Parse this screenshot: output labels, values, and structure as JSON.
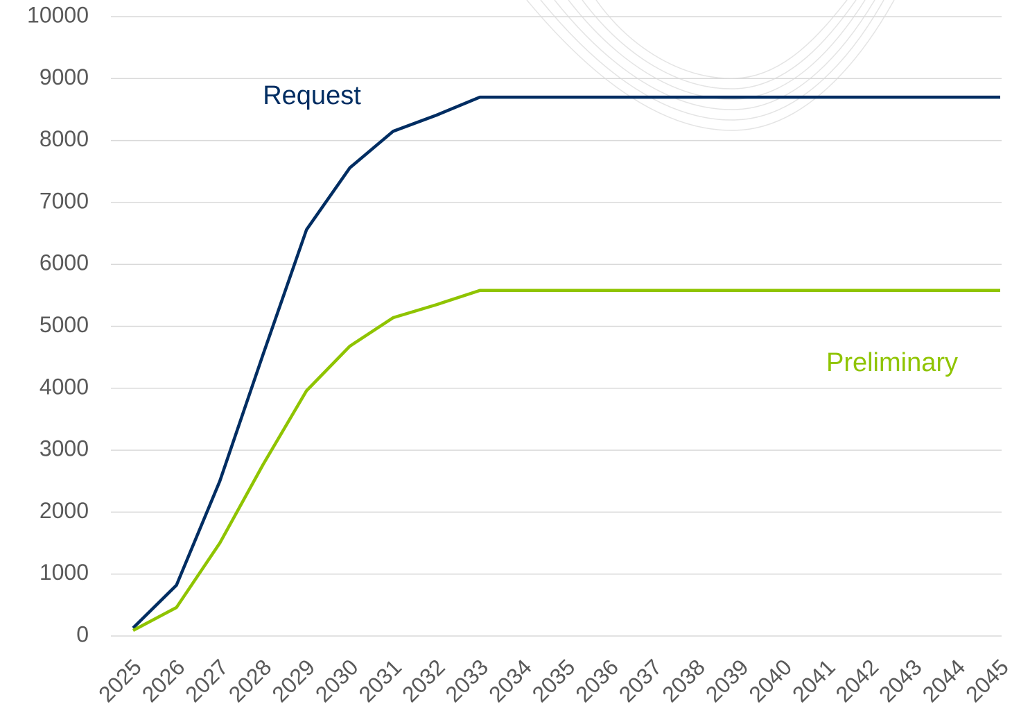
{
  "chart_data": {
    "type": "line",
    "categories": [
      "2025",
      "2026",
      "2027",
      "2028",
      "2029",
      "2030",
      "2031",
      "2032",
      "2033",
      "2034",
      "2035",
      "2036",
      "2037",
      "2038",
      "2039",
      "2040",
      "2041",
      "2042",
      "2043",
      "2044",
      "2045"
    ],
    "series": [
      {
        "name": "Request",
        "color": "#002d62",
        "values": [
          130,
          820,
          2500,
          4550,
          6560,
          7560,
          8150,
          8410,
          8700,
          8700,
          8700,
          8700,
          8700,
          8700,
          8700,
          8700,
          8700,
          8700,
          8700,
          8700,
          8700
        ]
      },
      {
        "name": "Preliminary",
        "color": "#8fc400",
        "values": [
          90,
          460,
          1500,
          2770,
          3960,
          4680,
          5140,
          5350,
          5580,
          5580,
          5580,
          5580,
          5580,
          5580,
          5580,
          5580,
          5580,
          5580,
          5580,
          5580,
          5580
        ]
      }
    ],
    "ylim": [
      0,
      10000
    ],
    "yticks": [
      0,
      1000,
      2000,
      3000,
      4000,
      5000,
      6000,
      7000,
      8000,
      9000,
      10000
    ],
    "grid": true
  }
}
